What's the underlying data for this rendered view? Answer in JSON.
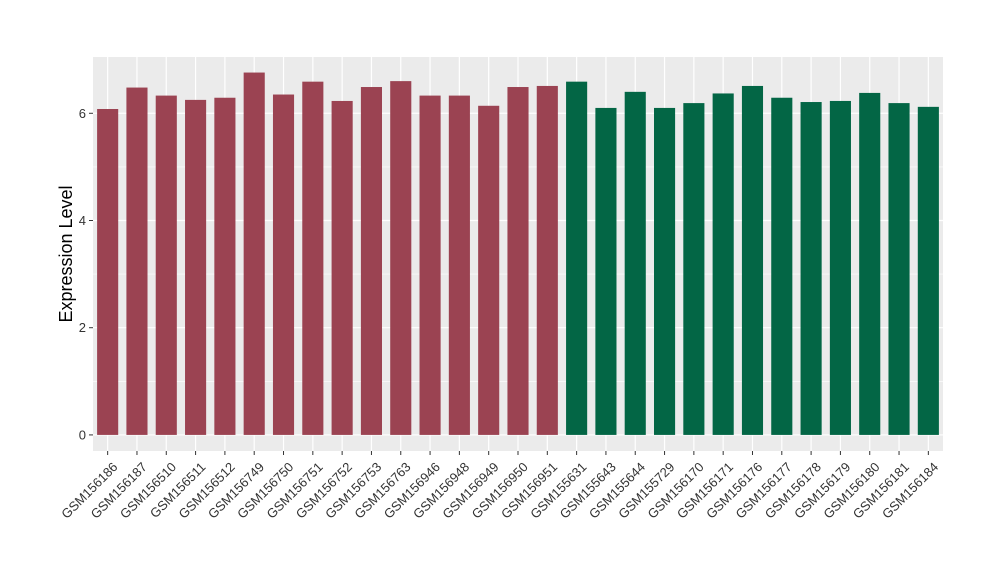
{
  "chart_data": {
    "type": "bar",
    "ylabel": "Expression Level",
    "xlabel": "",
    "ylim": [
      -0.3,
      7.05
    ],
    "yticks": [
      0,
      2,
      4,
      6
    ],
    "grid": true,
    "categories": [
      "GSM156186",
      "GSM156187",
      "GSM156510",
      "GSM156511",
      "GSM156512",
      "GSM156749",
      "GSM156750",
      "GSM156751",
      "GSM156752",
      "GSM156753",
      "GSM156763",
      "GSM156946",
      "GSM156948",
      "GSM156949",
      "GSM156950",
      "GSM156951",
      "GSM155631",
      "GSM155643",
      "GSM155644",
      "GSM155729",
      "GSM156170",
      "GSM156171",
      "GSM156176",
      "GSM156177",
      "GSM156178",
      "GSM156179",
      "GSM156180",
      "GSM156181",
      "GSM156184"
    ],
    "values": [
      6.08,
      6.48,
      6.33,
      6.25,
      6.29,
      6.76,
      6.35,
      6.59,
      6.23,
      6.49,
      6.6,
      6.33,
      6.33,
      6.14,
      6.49,
      6.51,
      6.59,
      6.1,
      6.4,
      6.1,
      6.19,
      6.37,
      6.51,
      6.29,
      6.21,
      6.23,
      6.38,
      6.19,
      6.12
    ],
    "group_sizes": [
      16,
      13
    ],
    "colors": {
      "group_a": "#9b4352",
      "group_b": "#036645",
      "panel_bg": "#ebebeb",
      "grid": "#ffffff",
      "axis_text": "#333333"
    }
  }
}
